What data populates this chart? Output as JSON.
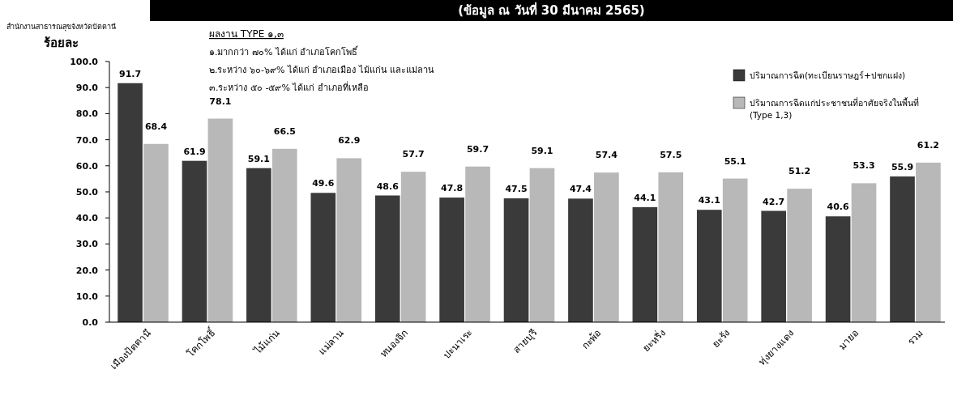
{
  "chart_data": {
    "type": "bar",
    "subtitle": "(ข้อมูล ณ วันที่ 30 มีนาคม 2565)",
    "ylabel": "ร้อยละ",
    "categories": [
      "เมืองปัตตานี",
      "โคกโพธิ์",
      "ไม้แก่น",
      "แม่ลาน",
      "หนองจิก",
      "ปะนาเระ",
      "สายบุรี",
      "กะพ้อ",
      "ยะหริ่ง",
      "ยะรัง",
      "ทุ่งยางแดง",
      "มายอ",
      "รวม"
    ],
    "series": [
      {
        "name": "ปริมาณการฉีด(ทะเบียนราษฎร์+ปชกแฝง)",
        "color": "#3a3a3a",
        "values": [
          91.7,
          61.9,
          59.1,
          49.6,
          48.6,
          47.8,
          47.5,
          47.4,
          44.1,
          43.1,
          42.7,
          40.6,
          55.9
        ]
      },
      {
        "name": "ปริมาณการฉีดแก่ประชาชนที่อาศัยจริงในพื้นที่ (Type 1,3)",
        "color": "#b8b8b8",
        "values": [
          68.4,
          78.1,
          66.5,
          62.9,
          57.7,
          59.7,
          59.1,
          57.4,
          57.5,
          55.1,
          51.2,
          53.3,
          61.2
        ]
      }
    ],
    "ylim": [
      0,
      100
    ],
    "yticks": [
      {
        "value": 0,
        "label": "0.0"
      },
      {
        "value": 10,
        "label": "10.0"
      },
      {
        "value": 20,
        "label": "20.0"
      },
      {
        "value": 30,
        "label": "30.0"
      },
      {
        "value": 40,
        "label": "40.0"
      },
      {
        "value": 50,
        "label": "50.0"
      },
      {
        "value": 60,
        "label": "60.0"
      },
      {
        "value": 70,
        "label": "70.0"
      },
      {
        "value": 80,
        "label": "80.0"
      },
      {
        "value": 90,
        "label": "90.0"
      },
      {
        "value": 100,
        "label": "100.0"
      }
    ],
    "data_labels": true,
    "grid": false,
    "legend": "top right",
    "annotations": [
      "สำนักงานสาธารณสุขจังหวัดปัตตานี",
      "ผลงาน TYPE ๑,๓",
      "๑.มากกว่า ๗๐% ได้แก่ อำเภอโคกโพธิ์",
      "๒.ระหว่าง ๖๐-๖๙% ได้แก่ อำเภอเมือง ไม้แก่น และแม่ลาน",
      "๓.ระหว่าง ๕๐ -๕๙% ได้แก่ อำเภอที่เหลือ"
    ]
  }
}
